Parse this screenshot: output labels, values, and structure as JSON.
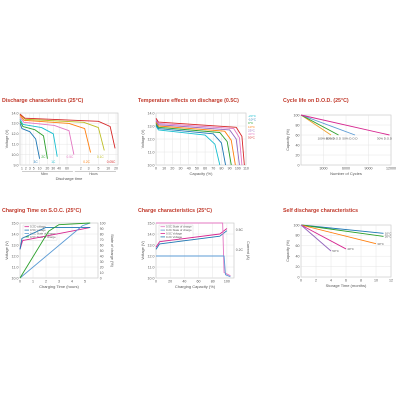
{
  "colors": {
    "title": "#c0392b",
    "axis": "#555555",
    "frame": "#bfbfbf",
    "grid": "#e0e0e0"
  },
  "chart_data": [
    {
      "id": "discharge",
      "type": "line",
      "title": "Discharge characteristics (25°C)",
      "xlabel": "Discharge time",
      "ylabel": "Voltage (V)",
      "x_tick_labels": [
        "1",
        "2",
        "3",
        "5",
        "10",
        "20",
        "30",
        "40",
        "60",
        "2",
        "3",
        "5",
        "10",
        "20"
      ],
      "x_tick_pos": [
        0.02,
        0.06,
        0.1,
        0.14,
        0.2,
        0.28,
        0.34,
        0.4,
        0.48,
        0.62,
        0.7,
        0.8,
        0.9,
        0.98
      ],
      "x_group_labels": [
        "Minn",
        "Hours"
      ],
      "ylim": [
        9.0,
        14.0
      ],
      "y_ticks": [
        9.0,
        10.0,
        11.0,
        12.0,
        13.0,
        14.0
      ],
      "series": [
        {
          "label": "3C",
          "color": "#1f77b4",
          "x": [
            0,
            0.02,
            0.1,
            0.16,
            0.2
          ],
          "y": [
            13.0,
            12.5,
            12.2,
            11.5,
            9.6
          ]
        },
        {
          "label": "2C",
          "color": "#2ca02c",
          "x": [
            0,
            0.03,
            0.15,
            0.24,
            0.28
          ],
          "y": [
            13.2,
            12.7,
            12.4,
            11.8,
            9.6
          ]
        },
        {
          "label": "1C",
          "color": "#17becf",
          "x": [
            0,
            0.03,
            0.22,
            0.34,
            0.38
          ],
          "y": [
            13.4,
            12.9,
            12.6,
            12.0,
            9.8
          ]
        },
        {
          "label": "0.5C",
          "color": "#e377c2",
          "x": [
            0,
            0.04,
            0.35,
            0.5,
            0.55
          ],
          "y": [
            13.6,
            13.1,
            12.8,
            12.3,
            10.0
          ]
        },
        {
          "label": "0.2C",
          "color": "#ff7f0e",
          "x": [
            0,
            0.04,
            0.5,
            0.66,
            0.72
          ],
          "y": [
            13.8,
            13.3,
            13.0,
            12.5,
            10.2
          ]
        },
        {
          "label": "0.1C",
          "color": "#bcbd22",
          "x": [
            0,
            0.05,
            0.65,
            0.8,
            0.86
          ],
          "y": [
            13.9,
            13.4,
            13.1,
            12.6,
            10.4
          ]
        },
        {
          "label": "0.05C",
          "color": "#d62728",
          "x": [
            0,
            0.05,
            0.8,
            0.92,
            0.97
          ],
          "y": [
            13.9,
            13.5,
            13.2,
            12.7,
            10.6
          ]
        }
      ]
    },
    {
      "id": "temperature",
      "type": "line",
      "title": "Temperature effects on discharge (0.5C)",
      "xlabel": "Capacity (%)",
      "ylabel": "Voltage (V)",
      "xlim": [
        0,
        110
      ],
      "x_ticks": [
        0,
        10,
        20,
        30,
        40,
        50,
        60,
        70,
        80,
        90,
        100,
        110
      ],
      "ylim": [
        10.0,
        14.0
      ],
      "y_ticks": [
        10.0,
        11.0,
        12.0,
        13.0,
        14.0
      ],
      "series": [
        {
          "label": "-20°C",
          "color": "#17becf",
          "x": [
            0,
            3,
            60,
            72,
            78
          ],
          "y": [
            13.0,
            12.7,
            12.3,
            11.6,
            10.0
          ]
        },
        {
          "label": "-10°C",
          "color": "#1f77b4",
          "x": [
            0,
            3,
            70,
            80,
            85
          ],
          "y": [
            13.1,
            12.8,
            12.4,
            11.7,
            10.0
          ]
        },
        {
          "label": "0°C",
          "color": "#2ca02c",
          "x": [
            0,
            3,
            78,
            87,
            92
          ],
          "y": [
            13.2,
            12.9,
            12.5,
            11.8,
            10.0
          ]
        },
        {
          "label": "10°C",
          "color": "#ff7f0e",
          "x": [
            0,
            3,
            84,
            92,
            97
          ],
          "y": [
            13.3,
            13.0,
            12.6,
            11.9,
            10.0
          ]
        },
        {
          "label": "25°C",
          "color": "#9467bd",
          "x": [
            0,
            3,
            90,
            98,
            102
          ],
          "y": [
            13.4,
            13.1,
            12.7,
            12.0,
            10.0
          ]
        },
        {
          "label": "40°C",
          "color": "#e377c2",
          "x": [
            0,
            3,
            95,
            102,
            105
          ],
          "y": [
            13.5,
            13.2,
            12.8,
            12.1,
            10.0
          ]
        },
        {
          "label": "50°C",
          "color": "#d62728",
          "x": [
            0,
            3,
            98,
            105,
            108
          ],
          "y": [
            13.6,
            13.3,
            12.9,
            12.2,
            10.0
          ]
        }
      ]
    },
    {
      "id": "cycle",
      "type": "line",
      "title": "Cycle life on D.O.D. (25°C)",
      "xlabel": "Number of Cycles",
      "ylabel": "Capacity (%)",
      "xlim": [
        0,
        12000
      ],
      "x_ticks": [
        3000,
        6000,
        9000,
        12000
      ],
      "ylim": [
        0,
        100
      ],
      "y_ticks": [
        0,
        20,
        40,
        60,
        80,
        100
      ],
      "series": [
        {
          "label": "100% D.O.D",
          "color": "#f0a030",
          "x": [
            0,
            4000
          ],
          "y": [
            100,
            60
          ]
        },
        {
          "label": "80% D.O.D",
          "color": "#2ca02c",
          "x": [
            0,
            5000
          ],
          "y": [
            100,
            60
          ]
        },
        {
          "label": "50% D.O.D",
          "color": "#5b9bd5",
          "x": [
            0,
            7200
          ],
          "y": [
            100,
            60
          ]
        },
        {
          "label": "30% D.O.D",
          "color": "#d62790",
          "x": [
            0,
            11800
          ],
          "y": [
            100,
            60
          ]
        }
      ]
    },
    {
      "id": "charging_time",
      "type": "line",
      "title": "Charging Time on S.O.C. (25°C)",
      "xlabel": "Charging Time (hours)",
      "ylabel": "Voltage (V)",
      "y2label": "State of charge (%)",
      "xlim": [
        0,
        6
      ],
      "x_ticks": [
        0,
        1,
        2,
        3,
        4,
        5
      ],
      "ylim": [
        10.0,
        15.0
      ],
      "y_ticks": [
        10.0,
        11.0,
        12.0,
        13.0,
        14.0,
        15.0
      ],
      "y2lim": [
        0,
        100
      ],
      "y2_ticks": [
        0,
        10,
        20,
        30,
        40,
        50,
        60,
        70,
        80,
        90,
        100
      ],
      "legend": [
        "0.2C voltage",
        "0.5C voltage",
        "0.2C State of charge",
        "0.5C State of charge"
      ],
      "series": [
        {
          "label": "0.2C voltage",
          "color": "#d62790",
          "axis": "left",
          "x": [
            0,
            0.2,
            4.6,
            5.4
          ],
          "y": [
            12.6,
            13.4,
            14.4,
            14.6
          ]
        },
        {
          "label": "0.5C voltage",
          "color": "#1f77b4",
          "axis": "left",
          "x": [
            0,
            0.15,
            2.0,
            5.4
          ],
          "y": [
            12.6,
            13.6,
            14.6,
            14.6
          ]
        },
        {
          "label": "0.2C State of charge",
          "color": "#5b9bd5",
          "axis": "right",
          "x": [
            0,
            4.8,
            5.4
          ],
          "y": [
            0,
            95,
            100
          ]
        },
        {
          "label": "0.5C State of charge",
          "color": "#2ca02c",
          "axis": "right",
          "x": [
            0,
            2.2,
            3.0,
            5.4
          ],
          "y": [
            0,
            85,
            97,
            100
          ]
        }
      ]
    },
    {
      "id": "charge",
      "type": "line",
      "title": "Charge characteristics (25°C)",
      "xlabel": "Charging Capacity (%)",
      "ylabel": "Voltage (V)",
      "y2label": "Current (A)",
      "xlim": [
        0,
        110
      ],
      "x_ticks": [
        0,
        20,
        40,
        60,
        80,
        100
      ],
      "ylim": [
        10.0,
        15.0
      ],
      "y_ticks": [
        10.0,
        11.0,
        12.0,
        13.0,
        14.0,
        15.0
      ],
      "y2lim": [
        0,
        0.5
      ],
      "y2_labels": [
        "0.5C",
        "0.2C"
      ],
      "legend": [
        "0.5C State of charge",
        "0.2C State of charge",
        "0.5C Voltage",
        "0.2C Voltage"
      ],
      "series": [
        {
          "label": "0.5C Voltage",
          "color": "#d62790",
          "axis": "left",
          "x": [
            0,
            5,
            90,
            100
          ],
          "y": [
            12.8,
            13.3,
            14.0,
            14.5
          ]
        },
        {
          "label": "0.2C Voltage",
          "color": "#1f77b4",
          "axis": "left",
          "x": [
            0,
            5,
            90,
            100
          ],
          "y": [
            12.6,
            13.1,
            13.8,
            14.3
          ]
        },
        {
          "label": "0.5C State of charge",
          "color": "#e377c2",
          "axis": "right",
          "x": [
            0,
            94,
            96,
            105
          ],
          "y": [
            0.5,
            0.5,
            0.05,
            0.02
          ]
        },
        {
          "label": "0.2C State of charge",
          "color": "#5b9bd5",
          "axis": "right",
          "x": [
            0,
            96,
            98,
            105
          ],
          "y": [
            0.2,
            0.2,
            0.03,
            0.01
          ]
        }
      ]
    },
    {
      "id": "self_discharge",
      "type": "line",
      "title": "Self discharge characteristics",
      "xlabel": "Storage Time (months)",
      "ylabel": "Capacity (%)",
      "xlim": [
        0,
        12
      ],
      "x_ticks": [
        0,
        2,
        4,
        6,
        8,
        10,
        12
      ],
      "ylim": [
        0,
        100
      ],
      "y_ticks": [
        0,
        20,
        40,
        60,
        80,
        100
      ],
      "series": [
        {
          "label": "10°C",
          "color": "#1f77b4",
          "x": [
            0,
            11
          ],
          "y": [
            100,
            84
          ]
        },
        {
          "label": "20°C",
          "color": "#2ca02c",
          "x": [
            0,
            11
          ],
          "y": [
            100,
            78
          ]
        },
        {
          "label": "30°C",
          "color": "#ff7f0e",
          "x": [
            0,
            10
          ],
          "y": [
            100,
            64
          ]
        },
        {
          "label": "40°C",
          "color": "#d62790",
          "x": [
            0,
            6
          ],
          "y": [
            100,
            54
          ]
        },
        {
          "label": "50°C",
          "color": "#9467bd",
          "x": [
            0,
            4
          ],
          "y": [
            100,
            50
          ]
        }
      ]
    }
  ]
}
